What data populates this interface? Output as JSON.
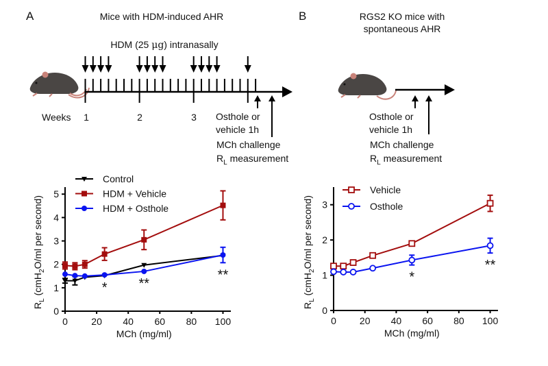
{
  "panel_a": {
    "letter": "A",
    "title": "Mice with HDM-induced AHR",
    "dose_label_pre": "HDM (25 ",
    "dose_label_unit": "μg",
    "dose_label_post": ") intranasally",
    "weeks_label": "Weeks",
    "week_numbers": [
      "1",
      "2",
      "3"
    ],
    "treatment_label_1": "Osthole or",
    "treatment_label_2": "vehicle 1h",
    "challenge_label": "MCh challenge",
    "measure_label_main": "R",
    "measure_label_sub": "L",
    "measure_label_rest": " measurement"
  },
  "panel_b": {
    "letter": "B",
    "title_line1": "RGS2 KO mice with",
    "title_line2": "spontaneous AHR",
    "treatment_label_1": "Osthole or",
    "treatment_label_2": "vehicle 1h",
    "challenge_label": "MCh challenge",
    "measure_label_main": "R",
    "measure_label_sub": "L",
    "measure_label_rest": " measurement"
  },
  "colors": {
    "control": "#000000",
    "vehicle": "#a30d0d",
    "osthole": "#0a14f0",
    "mouse_body": "#4a4644",
    "mouse_pink": "#c9837a"
  },
  "chart_data": [
    {
      "type": "line",
      "panel": "A",
      "title": "",
      "xlabel": "MCh (mg/ml)",
      "ylabel_main": "R",
      "ylabel_sub": "L",
      "ylabel_rest1": " (cmH",
      "ylabel_sub2": "2",
      "ylabel_rest2": "O/ml per second)",
      "xlim": [
        0,
        105
      ],
      "ylim": [
        0,
        5.3
      ],
      "xticks": [
        0,
        20,
        40,
        60,
        80,
        100
      ],
      "yticks": [
        0,
        1,
        2,
        3,
        4,
        5
      ],
      "legend_position": "top-left",
      "x": [
        0,
        6.25,
        12.5,
        25,
        50,
        100
      ],
      "series": [
        {
          "name": "Control",
          "marker": "triangle-down",
          "color_key": "control",
          "values": [
            1.3,
            1.3,
            1.45,
            1.52,
            1.97,
            2.38
          ],
          "err": [
            0.1,
            0.18,
            0,
            0,
            0,
            0
          ]
        },
        {
          "name": "HDM + Vehicle",
          "marker": "square",
          "color_key": "vehicle",
          "values": [
            1.95,
            1.92,
            2.0,
            2.44,
            3.05,
            4.52
          ],
          "err": [
            0.15,
            0.15,
            0.16,
            0.27,
            0.42,
            0.62
          ]
        },
        {
          "name": "HDM + Osthole",
          "marker": "circle",
          "color_key": "osthole",
          "values": [
            1.58,
            1.52,
            1.5,
            1.55,
            1.7,
            2.4
          ],
          "err": [
            0,
            0,
            0,
            0,
            0,
            0.33
          ]
        }
      ],
      "annotations": [
        {
          "x": 25,
          "text": "*"
        },
        {
          "x": 50,
          "text": "**"
        },
        {
          "x": 100,
          "text": "**"
        }
      ]
    },
    {
      "type": "line",
      "panel": "B",
      "title": "",
      "xlabel": "MCh (mg/ml)",
      "ylabel_main": "R",
      "ylabel_sub": "L",
      "ylabel_rest1": " (cmH",
      "ylabel_sub2": "2",
      "ylabel_rest2": "O/ml per second)",
      "xlim": [
        0,
        105
      ],
      "ylim": [
        0,
        3.5
      ],
      "xticks": [
        0,
        20,
        40,
        60,
        80,
        100
      ],
      "yticks": [
        0,
        1,
        2,
        3
      ],
      "legend_position": "top-left",
      "x": [
        0,
        6.25,
        12.5,
        25,
        50,
        100
      ],
      "series": [
        {
          "name": "Vehicle",
          "marker": "open-square",
          "color_key": "vehicle",
          "values": [
            1.26,
            1.26,
            1.36,
            1.56,
            1.9,
            3.04
          ],
          "err": [
            0,
            0,
            0,
            0,
            0,
            0.23
          ]
        },
        {
          "name": "Osthole",
          "marker": "open-circle",
          "color_key": "osthole",
          "values": [
            1.1,
            1.09,
            1.09,
            1.2,
            1.43,
            1.84
          ],
          "err": [
            0,
            0,
            0,
            0,
            0.14,
            0.21
          ]
        }
      ],
      "annotations": [
        {
          "x": 50,
          "text": "*"
        },
        {
          "x": 100,
          "text": "**"
        }
      ]
    }
  ]
}
